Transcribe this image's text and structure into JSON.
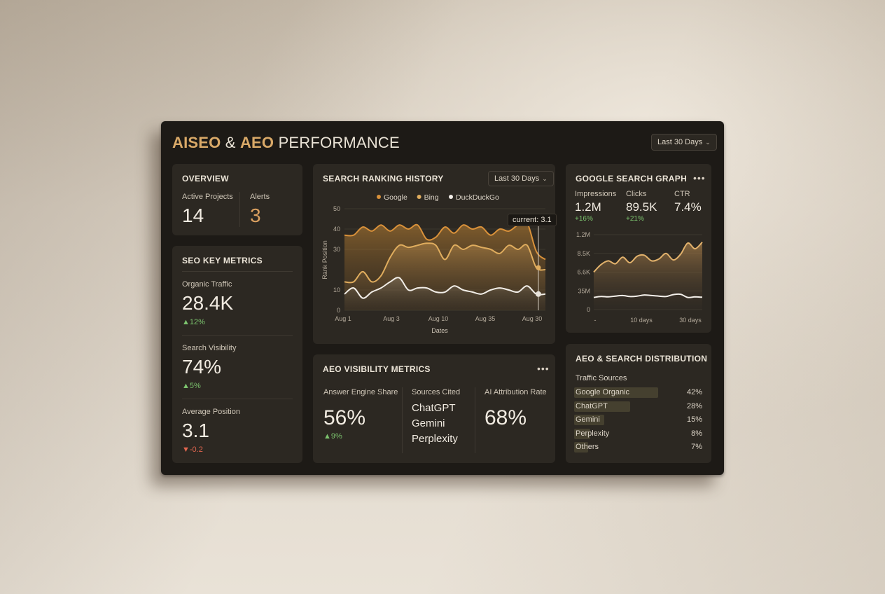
{
  "header": {
    "title_part1": "AISEO",
    "title_amp": "&",
    "title_part2": "AEO",
    "title_part3": "PERFORMANCE",
    "range_label": "Last 30 Days"
  },
  "overview": {
    "title": "OVERVIEW",
    "active_projects_label": "Active Projects",
    "active_projects_value": "14",
    "alerts_label": "Alerts",
    "alerts_value": "3"
  },
  "seo_metrics": {
    "title": "SEO KEY METRICS",
    "items": [
      {
        "label": "Organic Traffic",
        "value": "28.4K",
        "change": "12%",
        "direction": "up"
      },
      {
        "label": "Search Visibility",
        "value": "74%",
        "change": "5%",
        "direction": "up"
      },
      {
        "label": "Average Position",
        "value": "3.1",
        "change": "-0.2",
        "direction": "down"
      }
    ]
  },
  "ranking_history": {
    "title": "SEARCH RANKING HISTORY",
    "range_label": "Last 30 Days",
    "tooltip": "current: 3.1",
    "y_axis_label": "Rank Position",
    "x_axis_label": "Dates"
  },
  "google_graph": {
    "title": "GOOGLE SEARCH GRAPH",
    "metrics": [
      {
        "label": "Impressions",
        "value": "1.2M",
        "change": "+16%"
      },
      {
        "label": "Clicks",
        "value": "89.5K",
        "change": "+21%"
      },
      {
        "label": "CTR",
        "value": "7.4%",
        "change": ""
      }
    ]
  },
  "aeo_visibility": {
    "title": "AEO VISIBILITY METRICS",
    "answer_share_label": "Answer Engine Share",
    "answer_share_value": "56%",
    "answer_share_change": "9%",
    "sources_label": "Sources Cited",
    "sources": [
      "ChatGPT",
      "Gemini",
      "Perplexity"
    ],
    "attribution_label": "AI Attribution Rate",
    "attribution_value": "68%"
  },
  "distribution": {
    "title": "AEO & SEARCH DISTRIBUTION",
    "subtitle": "Traffic Sources",
    "rows": [
      {
        "name": "Google Organic",
        "pct": "42%",
        "share": 0.42
      },
      {
        "name": "ChatGPT",
        "pct": "28%",
        "share": 0.28
      },
      {
        "name": "Gemini",
        "pct": "15%",
        "share": 0.15
      },
      {
        "name": "Perplexity",
        "pct": "8%",
        "share": 0.08
      },
      {
        "name": "Others",
        "pct": "7%",
        "share": 0.07
      }
    ]
  },
  "colors": {
    "accent": "#d9a968",
    "google": "#d9913a",
    "bing": "#e0ad5e",
    "duckduckgo": "#f2eee8",
    "positive": "#7cc36e",
    "negative": "#e2664f",
    "panel": "#2c2822"
  },
  "chart_data": [
    {
      "type": "area",
      "title": "SEARCH RANKING HISTORY",
      "xlabel": "Dates",
      "ylabel": "Rank Position",
      "ylim": [
        0,
        50
      ],
      "yticks": [
        "0",
        "10",
        "30",
        "40",
        "50"
      ],
      "yticks_at": [
        0,
        10,
        30,
        40,
        50
      ],
      "x_tick_labels": [
        "Aug 1",
        "Aug 3",
        "Aug 10",
        "Aug 35",
        "Aug 30"
      ],
      "legend": [
        "Google",
        "Bing",
        "DuckDuckGo"
      ],
      "legend_position": "top",
      "grid": true,
      "series": [
        {
          "name": "Google",
          "values": [
            37,
            37,
            41,
            39,
            42,
            39,
            42,
            40,
            42,
            35,
            36,
            41,
            38,
            42,
            40,
            41,
            37,
            40,
            39,
            42,
            43,
            29,
            25
          ]
        },
        {
          "name": "Bing",
          "values": [
            14,
            14,
            19,
            14,
            17,
            26,
            32,
            31,
            32,
            33,
            32,
            25,
            32,
            30,
            32,
            31,
            30,
            28,
            32,
            30,
            32,
            21,
            20
          ]
        },
        {
          "name": "DuckDuckGo",
          "values": [
            8,
            11,
            6,
            9,
            11,
            14,
            16,
            10,
            11,
            11,
            9,
            9,
            12,
            10,
            9,
            8,
            10,
            11,
            10,
            9,
            12,
            8,
            8
          ]
        }
      ]
    },
    {
      "type": "area",
      "title": "GOOGLE SEARCH GRAPH",
      "yticks": [
        "0",
        "35M",
        "6.6K",
        "8.5K",
        "1.2M"
      ],
      "yticks_at": [
        0,
        1,
        2,
        3,
        4
      ],
      "ylim": [
        0,
        4
      ],
      "x_tick_labels": [
        "-",
        "10 days",
        "30 days"
      ],
      "grid": true,
      "series": [
        {
          "name": "Impressions",
          "values": [
            2.0,
            2.4,
            2.6,
            2.45,
            2.8,
            2.5,
            2.85,
            2.9,
            2.6,
            2.7,
            3.0,
            2.65,
            2.95,
            3.55,
            3.25,
            3.6
          ]
        },
        {
          "name": "Clicks",
          "values": [
            0.65,
            0.7,
            0.68,
            0.72,
            0.75,
            0.7,
            0.72,
            0.78,
            0.75,
            0.72,
            0.7,
            0.8,
            0.82,
            0.65,
            0.68,
            0.66
          ]
        }
      ]
    }
  ]
}
